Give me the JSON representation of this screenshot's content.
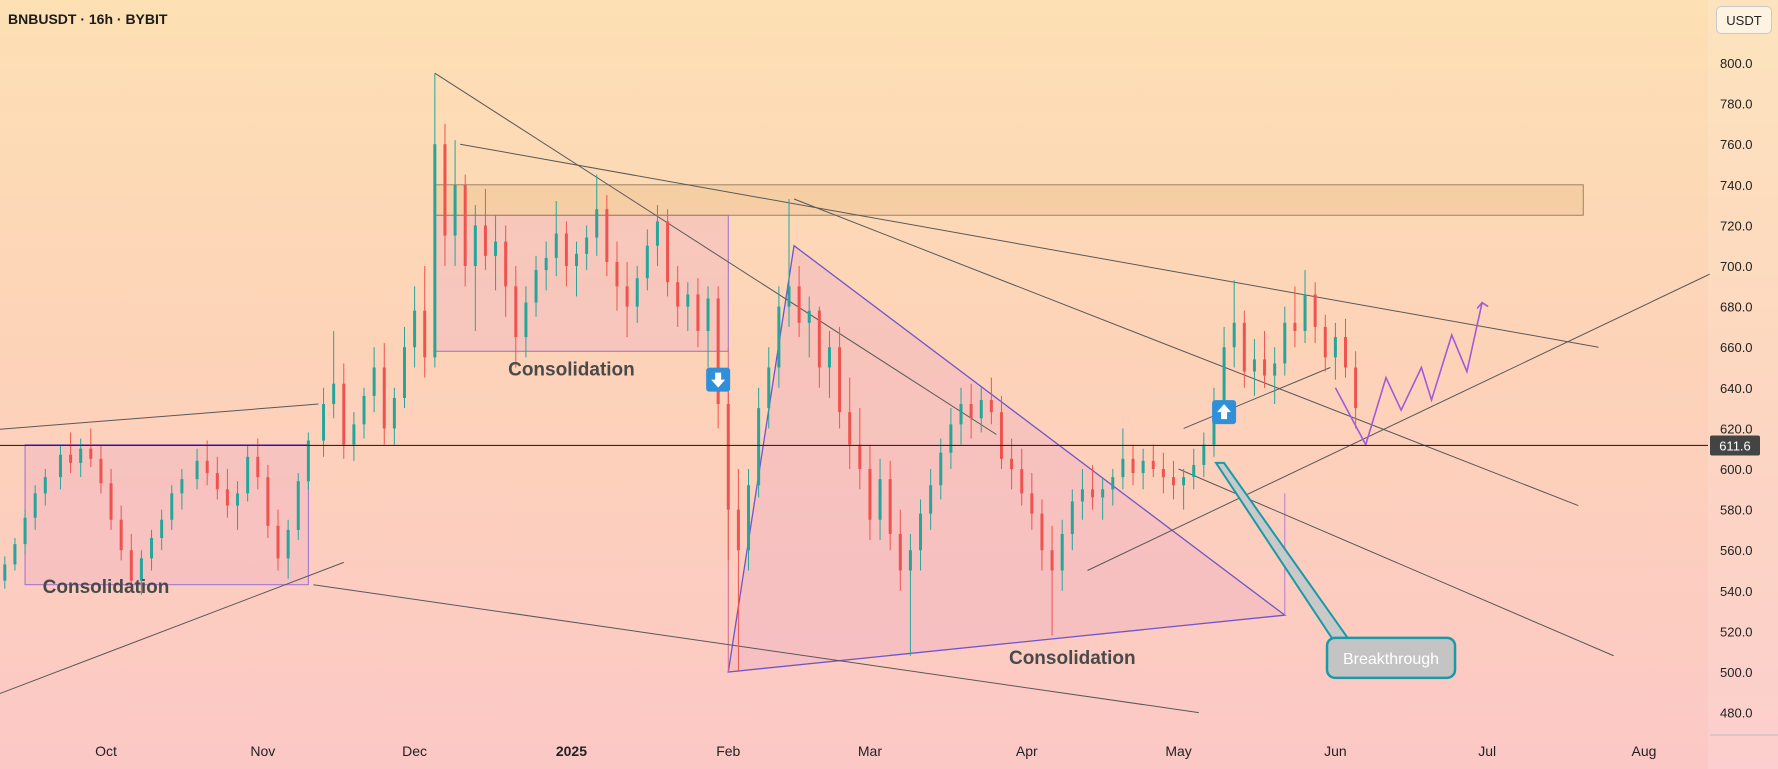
{
  "header": {
    "title": "BNBUSDT · 16h · BYBIT",
    "unit": "USDT"
  },
  "chart_data": {
    "type": "candlestick",
    "symbol": "BNBUSDT",
    "interval": "16h",
    "exchange": "BYBIT",
    "y_unit": "USDT",
    "ylim": [
      470,
      815
    ],
    "y_ticks": [
      "800.0",
      "780.0",
      "760.0",
      "740.0",
      "720.0",
      "700.0",
      "680.0",
      "660.0",
      "640.0",
      "620.0",
      "600.0",
      "580.0",
      "560.0",
      "540.0",
      "520.0",
      "500.0",
      "480.0"
    ],
    "x_ticks": [
      "Oct",
      "Nov",
      "Dec",
      "2025",
      "Feb",
      "Mar",
      "Apr",
      "May",
      "Jun",
      "Jul",
      "Aug"
    ],
    "current_price": {
      "value": 611.6,
      "label": "611.6"
    },
    "zones": [
      {
        "from": "2024-09-15",
        "to": "2024-11-10",
        "low": 543,
        "high": 612
      },
      {
        "from": "2024-12-05",
        "to": "2025-02-01",
        "low": 658,
        "high": 725
      },
      {
        "from": "2024-12-05",
        "to": "2025-07-20",
        "low": 725,
        "high": 740
      }
    ],
    "annotations": [
      {
        "text": "Consolidation",
        "date": "2024-10-01",
        "price": 539
      },
      {
        "text": "Consolidation",
        "date": "2025-01-01",
        "price": 646
      },
      {
        "text": "Consolidation",
        "date": "2025-04-10",
        "price": 504
      },
      {
        "text": "Breakthrough",
        "date": "2025-06-12",
        "price": 506
      }
    ],
    "signals": [
      {
        "type": "down",
        "date": "2025-01-30",
        "price": 644
      },
      {
        "type": "up",
        "date": "2025-05-10",
        "price": 628
      }
    ],
    "trendlines": [
      {
        "from": [
          "2024-08-28",
          617
        ],
        "to": [
          "2024-11-12",
          632
        ]
      },
      {
        "from": [
          "2024-08-28",
          477
        ],
        "to": [
          "2024-11-17",
          554
        ]
      },
      {
        "from": [
          "2024-11-11",
          543
        ],
        "to": [
          "2025-05-05",
          480
        ]
      },
      {
        "from": [
          "2024-12-05",
          795
        ],
        "to": [
          "2025-03-26",
          617
        ]
      },
      {
        "from": [
          "2024-12-10",
          760
        ],
        "to": [
          "2025-07-23",
          660
        ]
      },
      {
        "from": [
          "2025-02-14",
          733
        ],
        "to": [
          "2025-07-19",
          582
        ]
      },
      {
        "from": [
          "2025-04-13",
          550
        ],
        "to": [
          "2025-08-14",
          696
        ]
      },
      {
        "from": [
          "2025-05-01",
          600
        ],
        "to": [
          "2025-07-26",
          508
        ]
      },
      {
        "from": [
          "2025-05-02",
          620
        ],
        "to": [
          "2025-05-31",
          650
        ]
      }
    ],
    "triangle": [
      [
        "2025-02-01",
        500
      ],
      [
        "2025-02-14",
        710
      ],
      [
        "2025-05-22",
        528
      ]
    ],
    "projection": [
      [
        "2025-06-01",
        640
      ],
      [
        "2025-06-07",
        612
      ],
      [
        "2025-06-11",
        645
      ],
      [
        "2025-06-14",
        629
      ],
      [
        "2025-06-18",
        650
      ],
      [
        "2025-06-20",
        634
      ],
      [
        "2025-06-24",
        666
      ],
      [
        "2025-06-27",
        648
      ],
      [
        "2025-06-30",
        682
      ]
    ],
    "candles": [
      [
        "2024-08-28",
        509,
        535,
        505,
        528
      ],
      [
        "2024-08-30",
        528,
        542,
        525,
        538
      ],
      [
        "2024-09-02",
        538,
        547,
        531,
        534
      ],
      [
        "2024-09-04",
        534,
        540,
        522,
        529
      ],
      [
        "2024-09-06",
        529,
        538,
        524,
        536
      ],
      [
        "2024-09-08",
        536,
        548,
        532,
        545
      ],
      [
        "2024-09-11",
        545,
        557,
        541,
        553
      ],
      [
        "2024-09-13",
        553,
        566,
        550,
        563
      ],
      [
        "2024-09-15",
        563,
        580,
        558,
        576
      ],
      [
        "2024-09-17",
        576,
        592,
        570,
        588
      ],
      [
        "2024-09-19",
        588,
        600,
        582,
        596
      ],
      [
        "2024-09-22",
        596,
        612,
        590,
        607
      ],
      [
        "2024-09-24",
        607,
        618,
        598,
        603
      ],
      [
        "2024-09-26",
        603,
        615,
        596,
        610
      ],
      [
        "2024-09-28",
        610,
        620,
        601,
        605
      ],
      [
        "2024-09-30",
        605,
        612,
        588,
        593
      ],
      [
        "2024-10-02",
        593,
        600,
        570,
        575
      ],
      [
        "2024-10-04",
        575,
        582,
        555,
        560
      ],
      [
        "2024-10-06",
        560,
        568,
        540,
        545
      ],
      [
        "2024-10-08",
        545,
        560,
        538,
        556
      ],
      [
        "2024-10-10",
        556,
        570,
        550,
        566
      ],
      [
        "2024-10-12",
        566,
        580,
        560,
        575
      ],
      [
        "2024-10-14",
        575,
        592,
        570,
        588
      ],
      [
        "2024-10-16",
        588,
        600,
        580,
        595
      ],
      [
        "2024-10-19",
        595,
        610,
        590,
        604
      ],
      [
        "2024-10-21",
        604,
        614,
        592,
        598
      ],
      [
        "2024-10-23",
        598,
        606,
        585,
        590
      ],
      [
        "2024-10-25",
        590,
        600,
        576,
        582
      ],
      [
        "2024-10-27",
        582,
        594,
        570,
        588
      ],
      [
        "2024-10-29",
        588,
        612,
        584,
        606
      ],
      [
        "2024-10-31",
        606,
        615,
        590,
        596
      ],
      [
        "2024-11-02",
        596,
        602,
        566,
        572
      ],
      [
        "2024-11-04",
        572,
        580,
        550,
        556
      ],
      [
        "2024-11-06",
        556,
        575,
        546,
        570
      ],
      [
        "2024-11-08",
        570,
        598,
        565,
        594
      ],
      [
        "2024-11-10",
        594,
        618,
        590,
        614
      ],
      [
        "2024-11-13",
        614,
        640,
        606,
        632
      ],
      [
        "2024-11-15",
        632,
        668,
        625,
        642
      ],
      [
        "2024-11-17",
        642,
        652,
        605,
        612
      ],
      [
        "2024-11-19",
        612,
        628,
        604,
        622
      ],
      [
        "2024-11-21",
        622,
        640,
        615,
        636
      ],
      [
        "2024-11-23",
        636,
        660,
        628,
        650
      ],
      [
        "2024-11-25",
        650,
        662,
        612,
        620
      ],
      [
        "2024-11-27",
        620,
        640,
        612,
        635
      ],
      [
        "2024-11-29",
        635,
        670,
        630,
        660
      ],
      [
        "2024-12-01",
        660,
        690,
        650,
        678
      ],
      [
        "2024-12-03",
        678,
        700,
        645,
        655
      ],
      [
        "2024-12-05",
        655,
        795,
        650,
        760
      ],
      [
        "2024-12-07",
        760,
        770,
        700,
        715
      ],
      [
        "2024-12-09",
        715,
        762,
        700,
        740
      ],
      [
        "2024-12-11",
        740,
        745,
        690,
        700
      ],
      [
        "2024-12-13",
        700,
        730,
        668,
        720
      ],
      [
        "2024-12-15",
        720,
        738,
        698,
        705
      ],
      [
        "2024-12-17",
        705,
        725,
        688,
        712
      ],
      [
        "2024-12-19",
        712,
        720,
        675,
        690
      ],
      [
        "2024-12-21",
        690,
        700,
        650,
        665
      ],
      [
        "2024-12-23",
        665,
        690,
        655,
        682
      ],
      [
        "2024-12-25",
        682,
        705,
        675,
        698
      ],
      [
        "2024-12-27",
        698,
        712,
        688,
        704
      ],
      [
        "2024-12-29",
        704,
        732,
        695,
        716
      ],
      [
        "2024-12-31",
        716,
        722,
        690,
        700
      ],
      [
        "2025-01-02",
        700,
        712,
        685,
        706
      ],
      [
        "2025-01-04",
        706,
        720,
        698,
        714
      ],
      [
        "2025-01-06",
        714,
        745,
        705,
        728
      ],
      [
        "2025-01-08",
        728,
        735,
        695,
        702
      ],
      [
        "2025-01-10",
        702,
        712,
        678,
        690
      ],
      [
        "2025-01-12",
        690,
        702,
        665,
        680
      ],
      [
        "2025-01-14",
        680,
        700,
        672,
        694
      ],
      [
        "2025-01-16",
        694,
        718,
        688,
        710
      ],
      [
        "2025-01-18",
        710,
        730,
        700,
        722
      ],
      [
        "2025-01-20",
        722,
        728,
        685,
        692
      ],
      [
        "2025-01-22",
        692,
        700,
        670,
        680
      ],
      [
        "2025-01-24",
        680,
        692,
        668,
        686
      ],
      [
        "2025-01-26",
        686,
        694,
        660,
        668
      ],
      [
        "2025-01-28",
        668,
        690,
        650,
        684
      ],
      [
        "2025-01-30",
        684,
        690,
        620,
        632
      ],
      [
        "2025-02-01",
        632,
        650,
        555,
        580
      ],
      [
        "2025-02-03",
        580,
        600,
        500,
        560
      ],
      [
        "2025-02-05",
        560,
        600,
        550,
        592
      ],
      [
        "2025-02-07",
        592,
        640,
        586,
        630
      ],
      [
        "2025-02-09",
        630,
        660,
        620,
        650
      ],
      [
        "2025-02-11",
        650,
        690,
        640,
        680
      ],
      [
        "2025-02-13",
        680,
        733,
        670,
        690
      ],
      [
        "2025-02-15",
        690,
        700,
        665,
        672
      ],
      [
        "2025-02-17",
        672,
        685,
        655,
        678
      ],
      [
        "2025-02-19",
        678,
        680,
        640,
        650
      ],
      [
        "2025-02-21",
        650,
        668,
        635,
        660
      ],
      [
        "2025-02-23",
        660,
        670,
        620,
        628
      ],
      [
        "2025-02-25",
        628,
        645,
        600,
        612
      ],
      [
        "2025-02-27",
        612,
        630,
        590,
        600
      ],
      [
        "2025-03-01",
        600,
        612,
        565,
        575
      ],
      [
        "2025-03-03",
        575,
        605,
        565,
        595
      ],
      [
        "2025-03-05",
        595,
        604,
        560,
        568
      ],
      [
        "2025-03-07",
        568,
        580,
        540,
        550
      ],
      [
        "2025-03-09",
        550,
        568,
        508,
        560
      ],
      [
        "2025-03-11",
        560,
        585,
        550,
        578
      ],
      [
        "2025-03-13",
        578,
        600,
        570,
        592
      ],
      [
        "2025-03-15",
        592,
        615,
        585,
        608
      ],
      [
        "2025-03-17",
        608,
        630,
        600,
        622
      ],
      [
        "2025-03-19",
        622,
        640,
        612,
        632
      ],
      [
        "2025-03-21",
        632,
        642,
        615,
        625
      ],
      [
        "2025-03-23",
        625,
        640,
        618,
        634
      ],
      [
        "2025-03-25",
        634,
        645,
        622,
        628
      ],
      [
        "2025-03-27",
        628,
        636,
        600,
        605
      ],
      [
        "2025-03-29",
        605,
        615,
        590,
        600
      ],
      [
        "2025-03-31",
        600,
        610,
        582,
        588
      ],
      [
        "2025-04-02",
        588,
        598,
        570,
        578
      ],
      [
        "2025-04-04",
        578,
        585,
        550,
        560
      ],
      [
        "2025-04-06",
        560,
        572,
        518,
        550
      ],
      [
        "2025-04-08",
        550,
        575,
        540,
        568
      ],
      [
        "2025-04-10",
        568,
        590,
        560,
        584
      ],
      [
        "2025-04-12",
        584,
        600,
        575,
        590
      ],
      [
        "2025-04-14",
        590,
        602,
        580,
        586
      ],
      [
        "2025-04-16",
        586,
        596,
        575,
        590
      ],
      [
        "2025-04-18",
        590,
        600,
        582,
        596
      ],
      [
        "2025-04-20",
        596,
        620,
        590,
        605
      ],
      [
        "2025-04-22",
        605,
        612,
        592,
        598
      ],
      [
        "2025-04-24",
        598,
        610,
        590,
        604
      ],
      [
        "2025-04-26",
        604,
        612,
        596,
        600
      ],
      [
        "2025-04-28",
        600,
        608,
        588,
        596
      ],
      [
        "2025-04-30",
        596,
        604,
        585,
        592
      ],
      [
        "2025-05-02",
        592,
        600,
        580,
        596
      ],
      [
        "2025-05-04",
        596,
        610,
        590,
        602
      ],
      [
        "2025-05-06",
        602,
        618,
        596,
        612
      ],
      [
        "2025-05-08",
        612,
        640,
        606,
        632
      ],
      [
        "2025-05-10",
        632,
        670,
        626,
        660
      ],
      [
        "2025-05-12",
        660,
        693,
        650,
        672
      ],
      [
        "2025-05-14",
        672,
        678,
        640,
        648
      ],
      [
        "2025-05-16",
        648,
        664,
        636,
        654
      ],
      [
        "2025-05-18",
        654,
        668,
        640,
        646
      ],
      [
        "2025-05-20",
        646,
        660,
        632,
        652
      ],
      [
        "2025-05-22",
        652,
        680,
        646,
        672
      ],
      [
        "2025-05-24",
        672,
        690,
        660,
        668
      ],
      [
        "2025-05-26",
        668,
        698,
        662,
        686
      ],
      [
        "2025-05-28",
        686,
        692,
        662,
        670
      ],
      [
        "2025-05-30",
        670,
        676,
        648,
        655
      ],
      [
        "2025-06-01",
        655,
        672,
        644,
        665
      ],
      [
        "2025-06-03",
        665,
        674,
        645,
        650
      ],
      [
        "2025-06-05",
        650,
        658,
        620,
        630
      ]
    ]
  }
}
